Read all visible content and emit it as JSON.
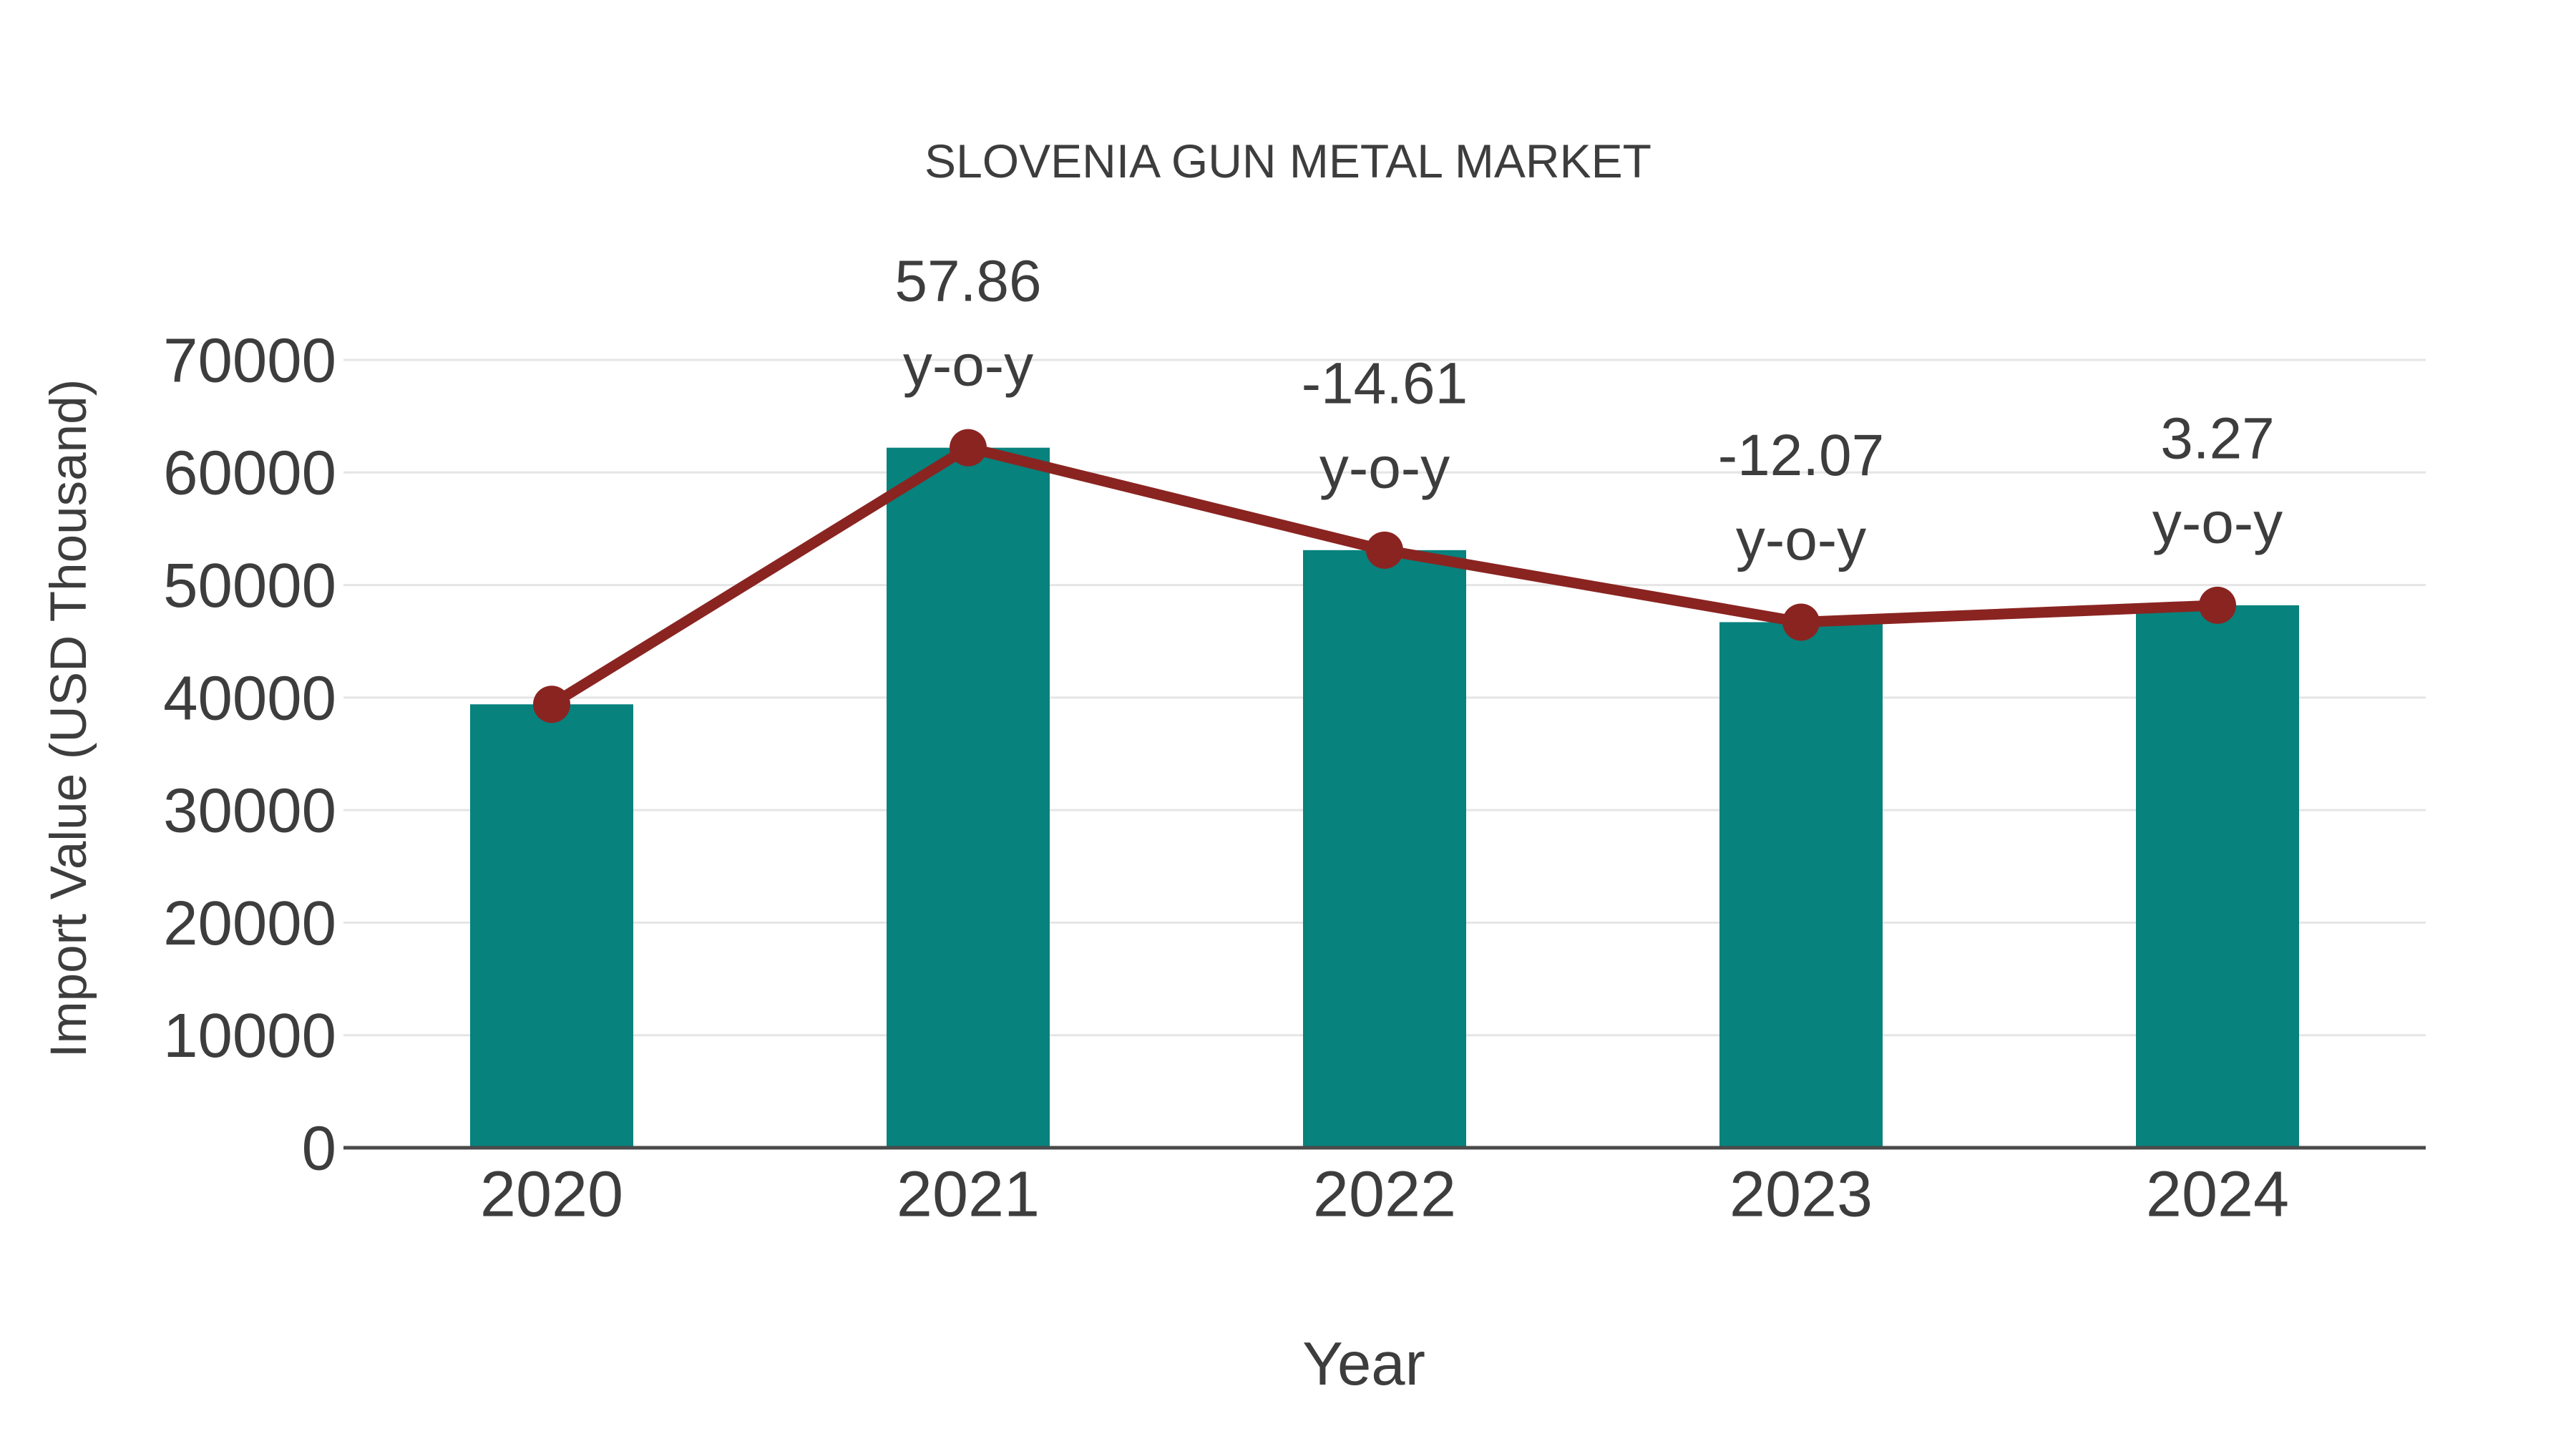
{
  "page": {
    "background": "#FFFFFF"
  },
  "chart_data": {
    "type": "bar",
    "title": "SLOVENIA GUN METAL MARKET",
    "xlabel": "Year",
    "ylabel": "Import Value (USD Thousand)",
    "categories": [
      "2020",
      "2021",
      "2022",
      "2023",
      "2024"
    ],
    "series": [
      {
        "name": "import-value-bars",
        "type": "bar",
        "values": [
          39400,
          62200,
          53100,
          46700,
          48200
        ],
        "color": "#07827D"
      },
      {
        "name": "import-value-trend-line",
        "type": "line",
        "values": [
          39400,
          62200,
          53100,
          46700,
          48200
        ],
        "color": "#8A2421"
      }
    ],
    "annotations": [
      {
        "category": "2021",
        "value": "57.86",
        "suffix": "y-o-y"
      },
      {
        "category": "2022",
        "value": "-14.61",
        "suffix": "y-o-y"
      },
      {
        "category": "2023",
        "value": "-12.07",
        "suffix": "y-o-y"
      },
      {
        "category": "2024",
        "value": "3.27",
        "suffix": "y-o-y"
      }
    ],
    "ylim": [
      0,
      70000
    ],
    "yticks": [
      0,
      10000,
      20000,
      30000,
      40000,
      50000,
      60000,
      70000
    ],
    "ytick_labels": [
      "0",
      "10000",
      "20000",
      "30000",
      "40000",
      "50000",
      "60000",
      "70000"
    ],
    "grid": true,
    "legend_position": "none",
    "colors": {
      "bar": "#07827D",
      "line": "#8A2421",
      "marker": "#8A2421",
      "gridline": "#E5E5E5",
      "axis_line": "#4A4A4A",
      "text": "#3D3D3D"
    }
  }
}
